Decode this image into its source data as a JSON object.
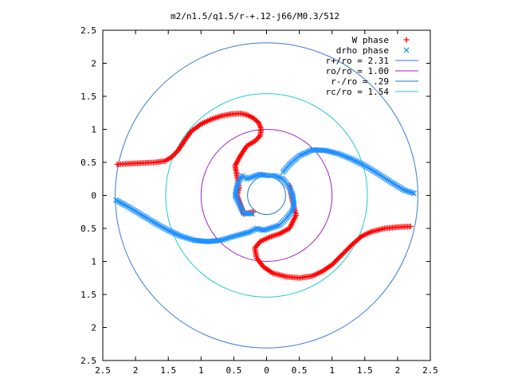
{
  "chart_data": {
    "type": "scatter",
    "title": "m2/n1.5/q1.5/r-+.12-j66/M0.3/512",
    "xlim": [
      -2.5,
      2.5
    ],
    "ylim": [
      -2.5,
      2.5
    ],
    "x_ticks": [
      -2.5,
      -2,
      -1.5,
      -1,
      -0.5,
      0,
      0.5,
      1,
      1.5,
      2,
      2.5
    ],
    "y_ticks": [
      -2.5,
      -2,
      -1.5,
      -1,
      -0.5,
      0,
      0.5,
      1,
      1.5,
      2,
      2.5
    ],
    "x_tick_labels": [
      "2.5",
      "2",
      "1.5",
      "1",
      "0.5",
      "0",
      "0.5",
      "1",
      "1.5",
      "2",
      "2.5"
    ],
    "y_tick_labels": [
      "2.5",
      "2",
      "1.5",
      "1",
      "0.5",
      "0",
      "0.5",
      "1",
      "1.5",
      "2",
      "2.5"
    ],
    "grid": false,
    "legend_position": "top-right",
    "series": [
      {
        "name": "W phase",
        "marker": "+",
        "color": "#ff0000",
        "points": [
          [
            -2.28,
            0.47
          ],
          [
            -2.1,
            0.48
          ],
          [
            -1.9,
            0.49
          ],
          [
            -1.7,
            0.5
          ],
          [
            -1.55,
            0.52
          ],
          [
            -1.45,
            0.58
          ],
          [
            -1.35,
            0.68
          ],
          [
            -1.25,
            0.83
          ],
          [
            -1.15,
            0.97
          ],
          [
            -1.0,
            1.08
          ],
          [
            -0.85,
            1.15
          ],
          [
            -0.7,
            1.2
          ],
          [
            -0.55,
            1.23
          ],
          [
            -0.4,
            1.24
          ],
          [
            -0.3,
            1.22
          ],
          [
            -0.2,
            1.17
          ],
          [
            -0.12,
            1.1
          ],
          [
            -0.08,
            1.0
          ],
          [
            -0.1,
            0.9
          ],
          [
            -0.18,
            0.82
          ],
          [
            -0.3,
            0.75
          ],
          [
            -0.4,
            0.6
          ],
          [
            -0.48,
            0.45
          ],
          [
            -0.45,
            0.28
          ],
          [
            -0.42,
            0.12
          ],
          [
            -0.45,
            0.0
          ],
          [
            -0.35,
            -0.28
          ],
          [
            -0.2,
            -0.25
          ],
          [
            0.35,
            0.15
          ],
          [
            0.4,
            -0.1
          ],
          [
            0.45,
            -0.3
          ],
          [
            0.35,
            -0.5
          ],
          [
            0.2,
            -0.58
          ],
          [
            0.05,
            -0.63
          ],
          [
            -0.1,
            -0.7
          ],
          [
            -0.18,
            -0.8
          ],
          [
            -0.15,
            -0.95
          ],
          [
            -0.05,
            -1.08
          ],
          [
            0.1,
            -1.18
          ],
          [
            0.3,
            -1.23
          ],
          [
            0.5,
            -1.25
          ],
          [
            0.7,
            -1.22
          ],
          [
            0.85,
            -1.15
          ],
          [
            1.0,
            -1.05
          ],
          [
            1.15,
            -0.9
          ],
          [
            1.3,
            -0.75
          ],
          [
            1.45,
            -0.62
          ],
          [
            1.6,
            -0.55
          ],
          [
            1.8,
            -0.5
          ],
          [
            2.0,
            -0.48
          ],
          [
            2.2,
            -0.47
          ]
        ]
      },
      {
        "name": "drho phase",
        "marker": "x",
        "color": "#1e90ff",
        "points": [
          [
            -2.3,
            -0.07
          ],
          [
            -2.1,
            -0.18
          ],
          [
            -1.9,
            -0.3
          ],
          [
            -1.7,
            -0.42
          ],
          [
            -1.5,
            -0.53
          ],
          [
            -1.3,
            -0.62
          ],
          [
            -1.1,
            -0.68
          ],
          [
            -0.9,
            -0.7
          ],
          [
            -0.7,
            -0.68
          ],
          [
            -0.5,
            -0.62
          ],
          [
            -0.35,
            -0.58
          ],
          [
            -0.25,
            -0.55
          ],
          [
            -0.15,
            -0.5
          ],
          [
            -0.05,
            -0.53
          ],
          [
            0.05,
            -0.5
          ],
          [
            0.2,
            -0.45
          ],
          [
            0.3,
            -0.35
          ],
          [
            0.38,
            -0.25
          ],
          [
            0.42,
            -0.15
          ],
          [
            0.4,
            0.0
          ],
          [
            0.35,
            0.12
          ],
          [
            0.25,
            0.25
          ],
          [
            0.12,
            0.3
          ],
          [
            0.0,
            0.3
          ],
          [
            -0.1,
            0.32
          ],
          [
            -0.3,
            0.25
          ],
          [
            -0.38,
            0.3
          ],
          [
            -0.45,
            0.15
          ],
          [
            -0.48,
            0.0
          ],
          [
            -0.35,
            -0.27
          ],
          [
            -0.22,
            -0.28
          ],
          [
            0.25,
            0.35
          ],
          [
            0.35,
            0.47
          ],
          [
            0.5,
            0.6
          ],
          [
            0.7,
            0.69
          ],
          [
            0.9,
            0.68
          ],
          [
            1.1,
            0.63
          ],
          [
            1.3,
            0.55
          ],
          [
            1.5,
            0.45
          ],
          [
            1.7,
            0.33
          ],
          [
            1.9,
            0.2
          ],
          [
            2.1,
            0.08
          ],
          [
            2.25,
            0.03
          ]
        ]
      },
      {
        "name": "r+/ro = 2.31",
        "type": "circle",
        "radius": 2.31,
        "color": "#3a7bd5"
      },
      {
        "name": "ro/ro = 1.00",
        "type": "circle",
        "radius": 1.0,
        "color": "#a020c8"
      },
      {
        "name": "r-/ro = .29",
        "type": "circle",
        "radius": 0.29,
        "color": "#1e78d0"
      },
      {
        "name": "rc/ro = 1.54",
        "type": "circle",
        "radius": 1.54,
        "color": "#20c8d8"
      }
    ]
  }
}
